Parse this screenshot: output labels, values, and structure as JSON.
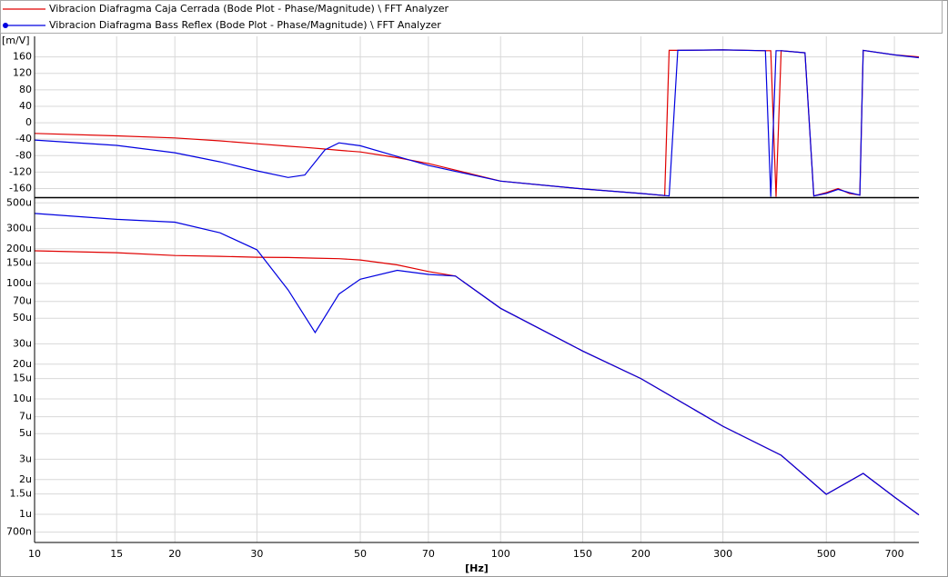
{
  "chart_data": [
    {
      "type": "line",
      "y_label": "[m/V]",
      "xlog": true,
      "grid": true,
      "xlim": [
        10,
        790
      ],
      "xticks": [
        10,
        15,
        20,
        30,
        50,
        70,
        100,
        150,
        200,
        300,
        500,
        700
      ],
      "ylim": [
        -181,
        210
      ],
      "yticks": [
        -160,
        -120,
        -80,
        -40,
        0,
        40,
        80,
        120,
        160
      ],
      "x": [
        10,
        15,
        20,
        25,
        30,
        35,
        38,
        42,
        45,
        50,
        60,
        70,
        100,
        150,
        200,
        225,
        230,
        240,
        300,
        370,
        380,
        390,
        400,
        450,
        470,
        500,
        530,
        560,
        590,
        600,
        700,
        790
      ],
      "series": [
        {
          "name": "Vibracion Diafragma Caja Cerrada (Bode Plot - Phase/Magnitude) \\ FFT Analyzer",
          "color": "#e00000",
          "values": [
            -26,
            -32,
            -37,
            -44,
            -51,
            -57,
            -60,
            -64,
            -67,
            -71,
            -85,
            -99,
            -142,
            -161,
            -172,
            -177,
            176,
            176,
            177,
            175,
            175,
            -180,
            175,
            170,
            -178,
            -170,
            -160,
            -172,
            -176,
            176,
            165,
            160
          ]
        },
        {
          "name": "Vibracion Diafragma Bass Reflex (Bode Plot - Phase/Magnitude) \\ FFT Analyzer",
          "color": "#0000e0",
          "values": [
            -42,
            -55,
            -73,
            -95,
            -117,
            -133,
            -127,
            -66,
            -49,
            -56,
            -82,
            -104,
            -142,
            -161,
            -172,
            -177,
            -178,
            176,
            177,
            175,
            -180,
            175,
            175,
            170,
            -178,
            -172,
            -162,
            -170,
            -176,
            176,
            165,
            158
          ]
        }
      ]
    },
    {
      "type": "line",
      "x_label": "[Hz]",
      "xlog": true,
      "ylog": true,
      "grid": true,
      "xlim": [
        10,
        790
      ],
      "xticks": [
        10,
        15,
        20,
        30,
        50,
        70,
        100,
        150,
        200,
        300,
        500,
        700
      ],
      "ylim": [
        5.7e-07,
        0.00055
      ],
      "yticks": [
        {
          "value": 7e-07,
          "label": "700n"
        },
        {
          "value": 1e-06,
          "label": "1u"
        },
        {
          "value": 1.5e-06,
          "label": "1.5u"
        },
        {
          "value": 2e-06,
          "label": "2u"
        },
        {
          "value": 3e-06,
          "label": "3u"
        },
        {
          "value": 5e-06,
          "label": "5u"
        },
        {
          "value": 7e-06,
          "label": "7u"
        },
        {
          "value": 1e-05,
          "label": "10u"
        },
        {
          "value": 1.5e-05,
          "label": "15u"
        },
        {
          "value": 2e-05,
          "label": "20u"
        },
        {
          "value": 3e-05,
          "label": "30u"
        },
        {
          "value": 5e-05,
          "label": "50u"
        },
        {
          "value": 7e-05,
          "label": "70u"
        },
        {
          "value": 0.0001,
          "label": "100u"
        },
        {
          "value": 0.00015,
          "label": "150u"
        },
        {
          "value": 0.0002,
          "label": "200u"
        },
        {
          "value": 0.0003,
          "label": "300u"
        },
        {
          "value": 0.0005,
          "label": "500u"
        }
      ],
      "x": [
        10,
        15,
        20,
        25,
        30,
        35,
        40,
        45,
        50,
        60,
        70,
        80,
        100,
        150,
        200,
        300,
        400,
        500,
        600,
        700,
        790
      ],
      "series": [
        {
          "color": "#e00000",
          "values": [
            0.000192,
            0.000185,
            0.000175,
            0.000172,
            0.000169,
            0.000168,
            0.000166,
            0.000164,
            0.00016,
            0.000145,
            0.000127,
            0.000116,
            6.1e-05,
            2.6e-05,
            1.5e-05,
            5.8e-06,
            3.25e-06,
            1.49e-06,
            2.26e-06,
            1.41e-06,
            9.9e-07
          ]
        },
        {
          "color": "#0000e0",
          "values": [
            0.000405,
            0.00036,
            0.00034,
            0.000275,
            0.000196,
            8.8e-05,
            3.76e-05,
            8.1e-05,
            0.000109,
            0.00013,
            0.00012,
            0.000116,
            6.1e-05,
            2.6e-05,
            1.5e-05,
            5.8e-06,
            3.25e-06,
            1.49e-06,
            2.26e-06,
            1.41e-06,
            9.9e-07
          ]
        }
      ]
    }
  ]
}
